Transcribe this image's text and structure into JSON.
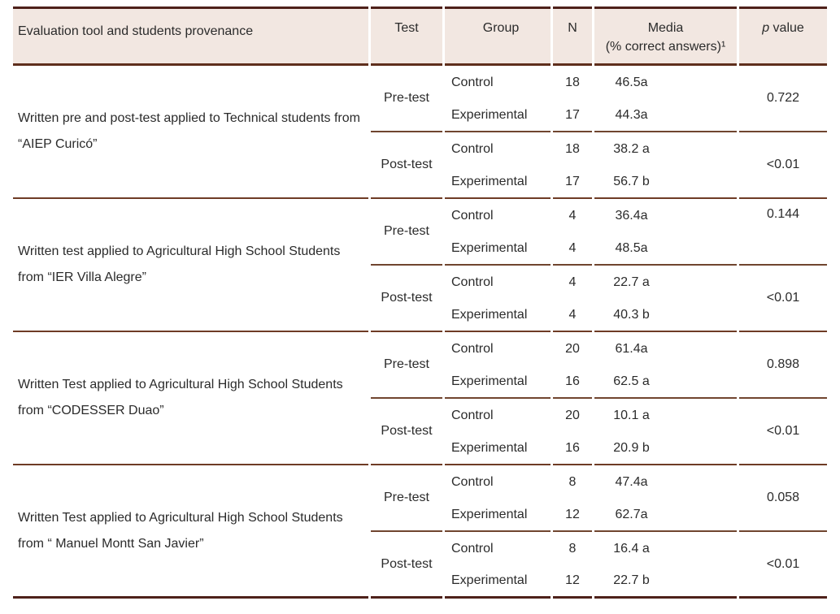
{
  "colors": {
    "header_background": "#f2e7e1",
    "outer_border": "#4e211a",
    "header_rule": "#5f2f1d",
    "section_rule": "#6e3b25",
    "subsection_rule": "#70452f",
    "text": "#2b2b2b"
  },
  "table": {
    "header": {
      "col_tool": "Evaluation tool and students provenance",
      "col_test": "Test",
      "col_group": "Group",
      "col_n": "N",
      "col_media_line1": "Media",
      "col_media_line2": "(% correct answers)¹",
      "col_p_letter": "p",
      "col_p_rest": " value"
    },
    "sections": [
      {
        "tool": "Written pre and post-test applied to Technical students from “AIEP Curicó”",
        "blocks": [
          {
            "test": "Pre-test",
            "p": "0.722",
            "p_valign": "center",
            "rows": [
              {
                "group": "Control",
                "n": "18",
                "media": "46.5a"
              },
              {
                "group": "Experimental",
                "n": "17",
                "media": "44.3a"
              }
            ]
          },
          {
            "test": "Post-test",
            "p": "<0.01",
            "p_valign": "center",
            "rows": [
              {
                "group": "Control",
                "n": "18",
                "media": "38.2 a"
              },
              {
                "group": "Experimental",
                "n": "17",
                "media": "56.7 b"
              }
            ]
          }
        ]
      },
      {
        "tool": "Written test applied to  Agricultural High School Students from “IER Villa Alegre”",
        "blocks": [
          {
            "test": "Pre-test",
            "p": "0.144",
            "p_valign": "top",
            "rows": [
              {
                "group": "Control",
                "n": "4",
                "media": "36.4a"
              },
              {
                "group": "Experimental",
                "n": "4",
                "media": "48.5a"
              }
            ]
          },
          {
            "test": "Post-test",
            "p": "<0.01",
            "p_valign": "center",
            "rows": [
              {
                "group": "Control",
                "n": "4",
                "media": "22.7 a"
              },
              {
                "group": "Experimental",
                "n": "4",
                "media": "40.3 b"
              }
            ]
          }
        ]
      },
      {
        "tool": "Written Test applied to Agricultural High School Students from “CODESSER Duao”",
        "blocks": [
          {
            "test": "Pre-test",
            "p": "0.898",
            "p_valign": "center",
            "rows": [
              {
                "group": "Control",
                "n": "20",
                "media": "61.4a"
              },
              {
                "group": "Experimental",
                "n": "16",
                "media": "62.5 a"
              }
            ]
          },
          {
            "test": "Post-test",
            "p": "<0.01",
            "p_valign": "center",
            "rows": [
              {
                "group": "Control",
                "n": "20",
                "media": "10.1 a"
              },
              {
                "group": "Experimental",
                "n": "16",
                "media": "20.9 b"
              }
            ]
          }
        ]
      },
      {
        "tool": "Written Test applied to Agricultural High School Students from “ Manuel Montt San Javier”",
        "blocks": [
          {
            "test": "Pre-test",
            "p": "0.058",
            "p_valign": "center",
            "rows": [
              {
                "group": "Control",
                "n": "8",
                "media": "47.4a"
              },
              {
                "group": "Experimental",
                "n": "12",
                "media": "62.7a"
              }
            ]
          },
          {
            "test": "Post-test",
            "p": "<0.01",
            "p_valign": "center",
            "rows": [
              {
                "group": "Control",
                "n": "8",
                "media": "16.4 a"
              },
              {
                "group": "Experimental",
                "n": "12",
                "media": "22.7 b"
              }
            ]
          }
        ]
      }
    ]
  }
}
